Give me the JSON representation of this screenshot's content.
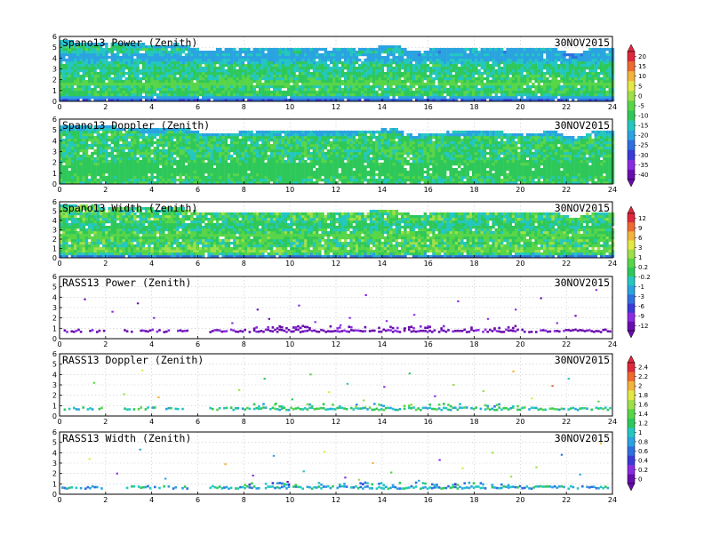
{
  "chart_data": [
    {
      "type": "heatmap",
      "title": "Spano13 Power (Zenith)",
      "date": "30NOV2015",
      "xlim": [
        0,
        24
      ],
      "ylim": [
        0,
        6
      ],
      "x_ticks": [
        0,
        2,
        4,
        6,
        8,
        10,
        12,
        14,
        16,
        18,
        20,
        22,
        24
      ],
      "y_ticks": [
        0,
        1,
        2,
        3,
        4,
        5,
        6
      ],
      "colorbar": "power",
      "top_edge": [
        [
          0,
          5.7
        ],
        [
          2,
          5.6
        ],
        [
          3.2,
          5.5
        ],
        [
          4.3,
          5.3
        ],
        [
          5,
          5.5
        ],
        [
          5.6,
          5.2
        ],
        [
          6.2,
          4.9
        ],
        [
          8,
          5.0
        ],
        [
          10,
          5.05
        ],
        [
          12,
          5.0
        ],
        [
          13.5,
          5.1
        ],
        [
          14.5,
          5.4
        ],
        [
          15.3,
          4.7
        ],
        [
          16.2,
          5.0
        ],
        [
          18,
          5.05
        ],
        [
          20,
          4.95
        ],
        [
          21.5,
          5.0
        ],
        [
          22.3,
          4.4
        ],
        [
          23,
          5.0
        ],
        [
          24,
          5.0
        ]
      ],
      "features": [
        {
          "y": 0.3,
          "w": 0.3,
          "v": -32
        },
        {
          "y": 0.55,
          "w": 0.2,
          "v": -20
        },
        {
          "y": 1.0,
          "w": 0.25,
          "v": -8
        },
        {
          "y": 1.8,
          "w": 0.3,
          "v": -3
        },
        {
          "y": 4.2,
          "w": 0.9,
          "v": -22
        },
        {
          "y": 3.0,
          "w": 0.5,
          "v": -13
        }
      ],
      "base": -10,
      "noise": 6
    },
    {
      "type": "heatmap",
      "title": "Spano13 Doppler (Zenith)",
      "date": "30NOV2015",
      "xlim": [
        0,
        24
      ],
      "ylim": [
        0,
        6
      ],
      "x_ticks": [
        0,
        2,
        4,
        6,
        8,
        10,
        12,
        14,
        16,
        18,
        20,
        22,
        24
      ],
      "y_ticks": [
        0,
        1,
        2,
        3,
        4,
        5,
        6
      ],
      "colorbar": "power",
      "top_edge": [
        [
          0,
          5.5
        ],
        [
          2,
          5.5
        ],
        [
          3.2,
          5.3
        ],
        [
          4.3,
          5.2
        ],
        [
          5,
          5.4
        ],
        [
          5.6,
          5.2
        ],
        [
          6.2,
          4.8
        ],
        [
          8,
          4.95
        ],
        [
          10,
          5.0
        ],
        [
          12,
          4.95
        ],
        [
          13.5,
          5.1
        ],
        [
          14.5,
          5.3
        ],
        [
          15.3,
          4.6
        ],
        [
          16.2,
          4.9
        ],
        [
          18,
          5.0
        ],
        [
          20,
          4.9
        ],
        [
          21.5,
          4.95
        ],
        [
          22.3,
          4.4
        ],
        [
          23,
          4.95
        ],
        [
          24,
          4.95
        ]
      ],
      "features": [
        {
          "y": 1.5,
          "w": 1.2,
          "v": -9
        }
      ],
      "base": -10,
      "noise": 5
    },
    {
      "type": "heatmap",
      "title": "Spano13 Width (Zenith)",
      "date": "30NOV2015",
      "xlim": [
        0,
        24
      ],
      "ylim": [
        0,
        6
      ],
      "x_ticks": [
        0,
        2,
        4,
        6,
        8,
        10,
        12,
        14,
        16,
        18,
        20,
        22,
        24
      ],
      "y_ticks": [
        0,
        1,
        2,
        3,
        4,
        5,
        6
      ],
      "colorbar": "width",
      "top_edge": [
        [
          0,
          5.8
        ],
        [
          2,
          5.7
        ],
        [
          3.2,
          5.5
        ],
        [
          4.3,
          5.4
        ],
        [
          5,
          5.6
        ],
        [
          5.6,
          5.3
        ],
        [
          6.2,
          4.9
        ],
        [
          8,
          5.0
        ],
        [
          10,
          5.1
        ],
        [
          12,
          5.0
        ],
        [
          13.5,
          5.15
        ],
        [
          14.5,
          5.4
        ],
        [
          15.3,
          4.7
        ],
        [
          16.2,
          5.0
        ],
        [
          18,
          5.05
        ],
        [
          20,
          4.95
        ],
        [
          21.5,
          5.0
        ],
        [
          22.3,
          4.4
        ],
        [
          23,
          5.0
        ],
        [
          24,
          5.0
        ]
      ],
      "features": [
        {
          "y": 0.3,
          "w": 0.3,
          "v": -6
        },
        {
          "y": 1.0,
          "w": 0.3,
          "v": 4
        },
        {
          "y": 2.5,
          "w": 0.5,
          "v": 2
        },
        {
          "y": 3.6,
          "w": 0.6,
          "v": -1
        }
      ],
      "base": 0.5,
      "noise": 3.2
    },
    {
      "type": "scatter",
      "title": "RASS13 Power (Zenith)",
      "date": "30NOV2015",
      "xlim": [
        0,
        24
      ],
      "ylim": [
        0,
        6
      ],
      "x_ticks": [
        0,
        2,
        4,
        6,
        8,
        10,
        12,
        14,
        16,
        18,
        20,
        22,
        24
      ],
      "y_ticks": [
        0,
        1,
        2,
        3,
        4,
        5,
        6
      ],
      "colorbar": "width",
      "band": {
        "y": 0.75,
        "w": 0.12,
        "v": -11
      },
      "gaps": [
        [
          1.9,
          2.7
        ],
        [
          5.6,
          6.4
        ]
      ],
      "scatter_value": -10,
      "points": [
        [
          1.1,
          3.8
        ],
        [
          2.3,
          2.6
        ],
        [
          3.4,
          3.4
        ],
        [
          4.1,
          2.0
        ],
        [
          7.5,
          1.5
        ],
        [
          8.6,
          2.8
        ],
        [
          9.1,
          1.9
        ],
        [
          10.4,
          3.2
        ],
        [
          11.1,
          1.6
        ],
        [
          12.6,
          2.0
        ],
        [
          13.3,
          4.2
        ],
        [
          14.2,
          1.7
        ],
        [
          15.4,
          2.3
        ],
        [
          16.0,
          1.2
        ],
        [
          17.3,
          3.6
        ],
        [
          18.6,
          1.9
        ],
        [
          19.8,
          2.8
        ],
        [
          20.9,
          3.9
        ],
        [
          21.6,
          1.5
        ],
        [
          22.4,
          2.2
        ],
        [
          23.3,
          4.7
        ],
        [
          9.6,
          1.1
        ],
        [
          12.2,
          1.3
        ],
        [
          15.0,
          1.0
        ]
      ]
    },
    {
      "type": "scatter",
      "title": "RASS13 Doppler (Zenith)",
      "date": "30NOV2015",
      "xlim": [
        0,
        24
      ],
      "ylim": [
        0,
        6
      ],
      "x_ticks": [
        0,
        2,
        4,
        6,
        8,
        10,
        12,
        14,
        16,
        18,
        20,
        22,
        24
      ],
      "y_ticks": [
        0,
        1,
        2,
        3,
        4,
        5,
        6
      ],
      "colorbar": "doppler",
      "band": {
        "y": 0.7,
        "w": 0.12,
        "v": 1.1
      },
      "gaps": [
        [
          1.9,
          2.7
        ],
        [
          5.6,
          6.4
        ]
      ],
      "scatter_value": 1.2,
      "points": [
        [
          1.5,
          3.2
        ],
        [
          2.8,
          2.1
        ],
        [
          3.6,
          4.4
        ],
        [
          4.3,
          1.8
        ],
        [
          7.8,
          2.5
        ],
        [
          8.9,
          3.6
        ],
        [
          10.1,
          1.6
        ],
        [
          10.9,
          4.0
        ],
        [
          11.7,
          2.3
        ],
        [
          12.5,
          3.1
        ],
        [
          13.2,
          1.5
        ],
        [
          14.1,
          2.8
        ],
        [
          15.2,
          4.1
        ],
        [
          16.3,
          1.9
        ],
        [
          17.1,
          3.0
        ],
        [
          18.4,
          2.4
        ],
        [
          19.7,
          4.3
        ],
        [
          20.5,
          1.7
        ],
        [
          21.4,
          2.9
        ],
        [
          22.1,
          3.6
        ],
        [
          23.4,
          1.4
        ],
        [
          9.4,
          1.2
        ],
        [
          12.9,
          1.1
        ]
      ]
    },
    {
      "type": "scatter",
      "title": "RASS13 Width (Zenith)",
      "date": "30NOV2015",
      "xlim": [
        0,
        24
      ],
      "ylim": [
        0,
        6
      ],
      "x_ticks": [
        0,
        2,
        4,
        6,
        8,
        10,
        12,
        14,
        16,
        18,
        20,
        22,
        24
      ],
      "y_ticks": [
        0,
        1,
        2,
        3,
        4,
        5,
        6
      ],
      "colorbar": "doppler",
      "band": {
        "y": 0.65,
        "w": 0.12,
        "v": 0.9
      },
      "gaps": [
        [
          1.9,
          2.7
        ],
        [
          5.6,
          6.4
        ]
      ],
      "scatter_value": 1.0,
      "points": [
        [
          1.3,
          3.4
        ],
        [
          2.5,
          2.0
        ],
        [
          3.5,
          4.3
        ],
        [
          4.6,
          1.5
        ],
        [
          7.2,
          2.9
        ],
        [
          8.4,
          1.8
        ],
        [
          9.3,
          3.7
        ],
        [
          10.6,
          2.2
        ],
        [
          11.5,
          4.1
        ],
        [
          12.4,
          1.6
        ],
        [
          13.6,
          3.0
        ],
        [
          14.4,
          2.1
        ],
        [
          15.6,
          1.3
        ],
        [
          16.5,
          3.3
        ],
        [
          17.5,
          2.5
        ],
        [
          18.8,
          4.0
        ],
        [
          19.6,
          1.7
        ],
        [
          20.7,
          2.6
        ],
        [
          21.8,
          3.8
        ],
        [
          22.6,
          1.9
        ],
        [
          23.5,
          4.9
        ],
        [
          9.9,
          1.2
        ],
        [
          13.0,
          1.4
        ]
      ]
    }
  ],
  "colorbars": {
    "power": {
      "labels": [
        "20",
        "15",
        "10",
        "5",
        "0",
        "-5",
        "-10",
        "-15",
        "-20",
        "-25",
        "-30",
        "-35",
        "-40"
      ],
      "values": [
        20,
        15,
        10,
        5,
        0,
        -5,
        -10,
        -15,
        -20,
        -25,
        -30,
        -35,
        -40
      ]
    },
    "width": {
      "labels": [
        "12",
        "9",
        "6",
        "3",
        "1",
        "0.2",
        "-0.2",
        "-1",
        "-3",
        "-6",
        "-9",
        "-12"
      ],
      "values": [
        12,
        9,
        6,
        3,
        1,
        0.2,
        -0.2,
        -1,
        -3,
        -6,
        -9,
        -12
      ]
    },
    "doppler": {
      "labels": [
        "2.4",
        "2.2",
        "2",
        "1.8",
        "1.6",
        "1.4",
        "1.2",
        "1",
        "0.8",
        "0.6",
        "0.4",
        "0.2",
        "0"
      ],
      "values": [
        2.4,
        2.2,
        2,
        1.8,
        1.6,
        1.4,
        1.2,
        1,
        0.8,
        0.6,
        0.4,
        0.2,
        0
      ]
    }
  },
  "palette": [
    "#6a0dad",
    "#8a2be2",
    "#3a3ad8",
    "#2f6fe0",
    "#2aa3e0",
    "#23c7c0",
    "#2ec85a",
    "#58d548",
    "#9ee04a",
    "#e4e845",
    "#f2b43c",
    "#ee6a2e",
    "#e0283c"
  ]
}
